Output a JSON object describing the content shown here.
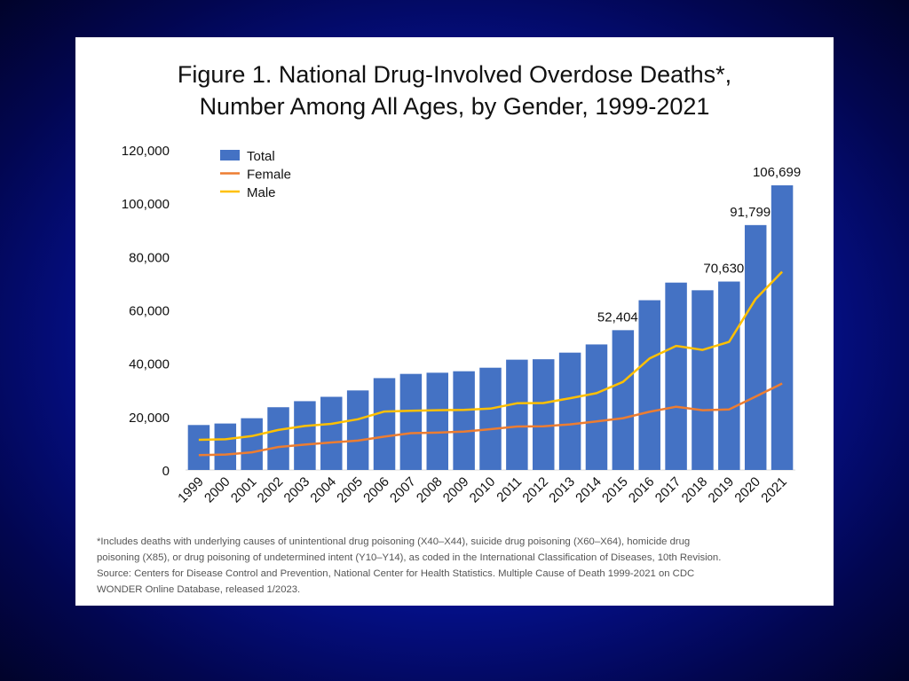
{
  "figure": {
    "title_line1": "Figure 1. National Drug-Involved Overdose Deaths*,",
    "title_line2": "Number Among All Ages, by Gender, 1999-2021",
    "footnote_lines": [
      "*Includes deaths with underlying causes of unintentional drug poisoning (X40–X44), suicide drug poisoning (X60–X64), homicide drug",
      "poisoning (X85), or drug poisoning of undetermined intent (Y10–Y14), as coded in the International Classification of Diseases, 10th Revision.",
      "Source: Centers for Disease Control and Prevention, National Center for Health Statistics. Multiple Cause of Death 1999-2021 on CDC",
      "WONDER Online Database, released 1/2023."
    ]
  },
  "colors": {
    "total": "#4472c4",
    "female": "#ed7d31",
    "male": "#ffc000"
  },
  "chart_data": {
    "type": "bar",
    "categories": [
      "1999",
      "2000",
      "2001",
      "2002",
      "2003",
      "2004",
      "2005",
      "2006",
      "2007",
      "2008",
      "2009",
      "2010",
      "2011",
      "2012",
      "2013",
      "2014",
      "2015",
      "2016",
      "2017",
      "2018",
      "2019",
      "2020",
      "2021"
    ],
    "series": [
      {
        "name": "Total",
        "type": "bar",
        "values": [
          16849,
          17415,
          19394,
          23518,
          25785,
          27424,
          29813,
          34425,
          36010,
          36450,
          37004,
          38329,
          41340,
          41502,
          43982,
          47055,
          52404,
          63632,
          70237,
          67367,
          70630,
          91799,
          106699
        ]
      },
      {
        "name": "Female",
        "type": "line",
        "values": [
          5591,
          5800,
          6600,
          8600,
          9500,
          10300,
          11000,
          12500,
          13800,
          14000,
          14400,
          15300,
          16300,
          16400,
          17100,
          18200,
          19400,
          21800,
          23700,
          22400,
          22700,
          27500,
          32400
        ]
      },
      {
        "name": "Male",
        "type": "line",
        "values": [
          11300,
          11500,
          12700,
          15000,
          16500,
          17300,
          19000,
          21900,
          22200,
          22400,
          22500,
          23000,
          25000,
          25100,
          26900,
          28800,
          33000,
          41800,
          46500,
          45000,
          48000,
          64100,
          74300
        ]
      }
    ],
    "data_labels": [
      {
        "category": "2015",
        "text": "52,404"
      },
      {
        "category": "2019",
        "text": "70,630"
      },
      {
        "category": "2020",
        "text": "91,799"
      },
      {
        "category": "2021",
        "text": "106,699"
      }
    ],
    "ylim": [
      0,
      120000
    ],
    "yticks": [
      {
        "value": 0,
        "label": "0"
      },
      {
        "value": 20000,
        "label": "20,000"
      },
      {
        "value": 40000,
        "label": "40,000"
      },
      {
        "value": 60000,
        "label": "60,000"
      },
      {
        "value": 80000,
        "label": "80,000"
      },
      {
        "value": 100000,
        "label": "100,000"
      },
      {
        "value": 120000,
        "label": "120,000"
      }
    ],
    "xlabel": "",
    "ylabel": "",
    "grid": false,
    "legend": {
      "position": "top-left",
      "entries": [
        "Total",
        "Female",
        "Male"
      ]
    }
  }
}
